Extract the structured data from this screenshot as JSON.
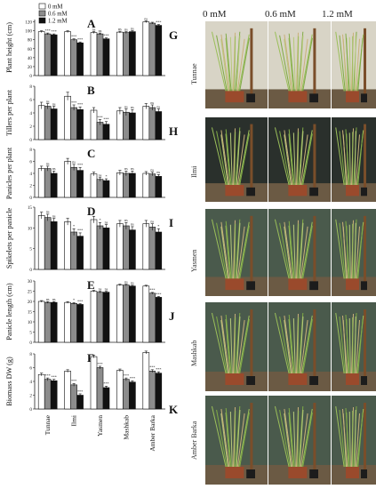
{
  "legend": [
    {
      "label": "0 mM",
      "color": "#ffffff"
    },
    {
      "label": "0.6 mM",
      "color": "#8c8c8c"
    },
    {
      "label": "1.2 mM",
      "color": "#111111"
    }
  ],
  "photo_headers": [
    "0 mM",
    "0.6 mM",
    "1.2 mM"
  ],
  "photo_panels": [
    {
      "letter": "G",
      "cultivar": "Tunnae"
    },
    {
      "letter": "H",
      "cultivar": "Ilmi"
    },
    {
      "letter": "I",
      "cultivar": "Yasmen"
    },
    {
      "letter": "J",
      "cultivar": "Mashkab"
    },
    {
      "letter": "K",
      "cultivar": "Amber Barka"
    }
  ],
  "chart_data": [
    {
      "type": "bar",
      "panel": "A",
      "ylabel": "Plant height (cm)",
      "ylim": [
        0,
        125
      ],
      "yticks": [
        0,
        20,
        40,
        60,
        80,
        100,
        120
      ],
      "categories": [
        "Tunnae",
        "Ilmi",
        "Yasmen",
        "Mashkab",
        "Amber Barka"
      ],
      "series": [
        {
          "name": "0 mM",
          "values": [
            98,
            98,
            96,
            97,
            120
          ],
          "errors": [
            2,
            2,
            2,
            2,
            2
          ],
          "sig": [
            "",
            "",
            "ns",
            "ns",
            "ns"
          ]
        },
        {
          "name": "0.6 mM",
          "values": [
            93,
            80,
            93,
            96,
            117
          ],
          "errors": [
            2,
            2,
            2,
            2,
            2
          ],
          "sig": [
            "***",
            "***",
            "ns",
            "ns",
            ""
          ]
        },
        {
          "name": "1.2 mM",
          "values": [
            91,
            73,
            82,
            98,
            112
          ],
          "errors": [
            2,
            2,
            2,
            2,
            2
          ],
          "sig": [
            "***",
            "***",
            "***",
            "ns",
            "***"
          ]
        }
      ]
    },
    {
      "type": "bar",
      "panel": "B",
      "ylabel": "Tillers per plant",
      "ylim": [
        0,
        8
      ],
      "yticks": [
        0,
        2,
        4,
        6,
        8
      ],
      "categories": [
        "Tunnae",
        "Ilmi",
        "Yasmen",
        "Mashkab",
        "Amber Barka"
      ],
      "series": [
        {
          "name": "0 mM",
          "values": [
            5.1,
            6.5,
            4.4,
            4.3,
            5.0
          ],
          "errors": [
            0.5,
            0.6,
            0.4,
            0.5,
            0.4
          ],
          "sig": [
            "",
            "",
            "",
            "",
            ""
          ]
        },
        {
          "name": "0.6 mM",
          "values": [
            5.0,
            4.8,
            2.6,
            4.1,
            4.8
          ],
          "errors": [
            0.4,
            0.4,
            0.4,
            0.5,
            0.4
          ],
          "sig": [
            "ns",
            "***",
            "***",
            "ns",
            "ns"
          ]
        },
        {
          "name": "1.2 mM",
          "values": [
            4.6,
            4.5,
            2.3,
            4.0,
            4.2
          ],
          "errors": [
            0.4,
            0.4,
            0.4,
            0.5,
            0.4
          ],
          "sig": [
            "ns",
            "***",
            "***",
            "ns",
            "ns"
          ]
        }
      ]
    },
    {
      "type": "bar",
      "panel": "C",
      "ylabel": "Panicles per plant",
      "ylim": [
        0,
        8
      ],
      "yticks": [
        0,
        2,
        4,
        6,
        8
      ],
      "categories": [
        "Tunnae",
        "Ilmi",
        "Yasmen",
        "Mashkab",
        "Amber Barka"
      ],
      "series": [
        {
          "name": "0 mM",
          "values": [
            4.8,
            6.0,
            3.9,
            4.1,
            4.0
          ],
          "errors": [
            0.4,
            0.5,
            0.3,
            0.4,
            0.3
          ],
          "sig": [
            "",
            "",
            "",
            "",
            ""
          ]
        },
        {
          "name": "0.6 mM",
          "values": [
            4.8,
            5.0,
            3.0,
            4.0,
            3.9
          ],
          "errors": [
            0.4,
            0.5,
            0.3,
            0.4,
            0.3
          ],
          "sig": [
            "ns",
            "ns",
            "ns",
            "ns",
            "ns"
          ]
        },
        {
          "name": "1.2 mM",
          "values": [
            4.0,
            4.5,
            2.8,
            4.0,
            3.5
          ],
          "errors": [
            0.4,
            0.5,
            0.3,
            0.4,
            0.3
          ],
          "sig": [
            "ns",
            "***",
            "*",
            "ns",
            "ns"
          ]
        }
      ]
    },
    {
      "type": "bar",
      "panel": "D",
      "ylabel": "Spikelets per panicle",
      "ylim": [
        0,
        15
      ],
      "yticks": [
        0,
        5,
        10,
        15
      ],
      "categories": [
        "Tunnae",
        "Ilmi",
        "Yasmen",
        "Mashkab",
        "Amber Barka"
      ],
      "series": [
        {
          "name": "0 mM",
          "values": [
            13.0,
            11.5,
            12.0,
            11.0,
            11.0
          ],
          "errors": [
            0.8,
            0.8,
            0.8,
            0.8,
            0.8
          ],
          "sig": [
            "",
            "",
            "",
            "",
            ""
          ]
        },
        {
          "name": "0.6 mM",
          "values": [
            12.5,
            9.0,
            10.5,
            10.5,
            10.2
          ],
          "errors": [
            0.8,
            0.8,
            0.8,
            0.8,
            0.8
          ],
          "sig": [
            "ns",
            "*",
            "*",
            "ns",
            "ns"
          ]
        },
        {
          "name": "1.2 mM",
          "values": [
            11.5,
            8.0,
            10.0,
            9.5,
            9.0
          ],
          "errors": [
            0.8,
            0.8,
            0.8,
            0.8,
            0.8
          ],
          "sig": [
            "ns",
            "***",
            "ns",
            "ns",
            "*"
          ]
        }
      ]
    },
    {
      "type": "bar",
      "panel": "E",
      "ylabel": "Panicle length (cm)",
      "ylim": [
        0,
        30
      ],
      "yticks": [
        0,
        5,
        10,
        15,
        20,
        25,
        30
      ],
      "categories": [
        "Tunnae",
        "Ilmi",
        "Yasmen",
        "Mashkab",
        "Amber Barka"
      ],
      "series": [
        {
          "name": "0 mM",
          "values": [
            20,
            19.5,
            25,
            28,
            27.5
          ],
          "errors": [
            0.4,
            0.4,
            0.4,
            0.4,
            0.4
          ],
          "sig": [
            "",
            "",
            "",
            "",
            ""
          ]
        },
        {
          "name": "0.6 mM",
          "values": [
            19.5,
            19,
            24.5,
            28,
            24
          ],
          "errors": [
            0.4,
            0.4,
            0.4,
            0.4,
            0.4
          ],
          "sig": [
            "ns",
            "*",
            "ns",
            "ns",
            "***"
          ]
        },
        {
          "name": "1.2 mM",
          "values": [
            19.5,
            18.5,
            24.5,
            27.5,
            22
          ],
          "errors": [
            0.4,
            0.4,
            0.4,
            0.4,
            0.4
          ],
          "sig": [
            "ns",
            "***",
            "ns",
            "ns",
            "***"
          ]
        }
      ]
    },
    {
      "type": "bar",
      "panel": "F",
      "ylabel": "Biomass DW (g)",
      "ylim": [
        0,
        8
      ],
      "yticks": [
        0,
        2,
        4,
        6,
        8
      ],
      "categories": [
        "Tunnae",
        "Ilmi",
        "Yasmen",
        "Mashkab",
        "Amber Barka"
      ],
      "series": [
        {
          "name": "0 mM",
          "values": [
            5.0,
            5.5,
            7.6,
            5.6,
            8.2
          ],
          "errors": [
            0.2,
            0.2,
            0.2,
            0.2,
            0.2
          ],
          "sig": [
            "",
            "",
            "",
            "",
            ""
          ]
        },
        {
          "name": "0.6 mM",
          "values": [
            4.3,
            3.5,
            6.0,
            4.3,
            5.5
          ],
          "errors": [
            0.2,
            0.2,
            0.2,
            0.2,
            0.2
          ],
          "sig": [
            "***",
            "***",
            "***",
            "***",
            "***"
          ]
        },
        {
          "name": "1.2 mM",
          "values": [
            4.1,
            2.0,
            3.1,
            3.9,
            5.2
          ],
          "errors": [
            0.2,
            0.2,
            0.2,
            0.2,
            0.2
          ],
          "sig": [
            "***",
            "***",
            "***",
            "***",
            "***"
          ]
        }
      ]
    }
  ]
}
